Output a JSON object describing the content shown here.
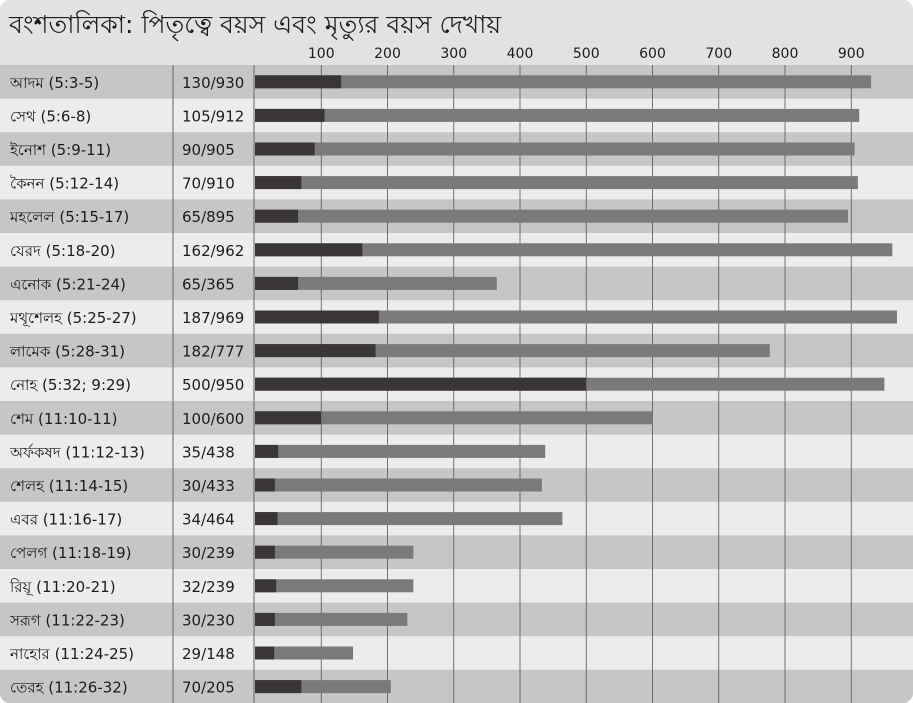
{
  "chart_data": {
    "type": "bar",
    "title": "বংশতালিকা: পিতৃত্বে বয়স এবং মৃত্যুর বয়স দেখায়",
    "x_ticks": [
      100,
      200,
      300,
      400,
      500,
      600,
      700,
      800,
      900
    ],
    "xlim": [
      0,
      970
    ],
    "grid": true,
    "rows": [
      {
        "name": "আদম (5:3-5)",
        "label": "130/930",
        "father_age": 130,
        "death_age": 930
      },
      {
        "name": "সেথ (5:6-8)",
        "label": "105/912",
        "father_age": 105,
        "death_age": 912
      },
      {
        "name": "ইনোশ (5:9-11)",
        "label": "90/905",
        "father_age": 90,
        "death_age": 905
      },
      {
        "name": "কৈনন (5:12-14)",
        "label": "70/910",
        "father_age": 70,
        "death_age": 910
      },
      {
        "name": "মহলেল (5:15-17)",
        "label": "65/895",
        "father_age": 65,
        "death_age": 895
      },
      {
        "name": "যেরদ (5:18-20)",
        "label": "162/962",
        "father_age": 162,
        "death_age": 962
      },
      {
        "name": "এনোক (5:21-24)",
        "label": "65/365",
        "father_age": 65,
        "death_age": 365
      },
      {
        "name": "মথূশেলহ (5:25-27)",
        "label": "187/969",
        "father_age": 187,
        "death_age": 969
      },
      {
        "name": "লামেক (5:28-31)",
        "label": "182/777",
        "father_age": 182,
        "death_age": 777
      },
      {
        "name": "নোহ (5:32; 9:29)",
        "label": "500/950",
        "father_age": 500,
        "death_age": 950
      },
      {
        "name": "শেম (11:10-11)",
        "label": "100/600",
        "father_age": 100,
        "death_age": 600
      },
      {
        "name": "অর্ফকষদ (11:12-13)",
        "label": "35/438",
        "father_age": 35,
        "death_age": 438
      },
      {
        "name": "শেলহ (11:14-15)",
        "label": "30/433",
        "father_age": 30,
        "death_age": 433
      },
      {
        "name": "এবর (11:16-17)",
        "label": "34/464",
        "father_age": 34,
        "death_age": 464
      },
      {
        "name": "পেলগ (11:18-19)",
        "label": "30/239",
        "father_age": 30,
        "death_age": 239
      },
      {
        "name": "রিয়ূ (11:20-21)",
        "label": "32/239",
        "father_age": 32,
        "death_age": 239
      },
      {
        "name": "সরূগ (11:22-23)",
        "label": "30/230",
        "father_age": 30,
        "death_age": 230
      },
      {
        "name": "নাহোর (11:24-25)",
        "label": "29/148",
        "father_age": 29,
        "death_age": 148
      },
      {
        "name": "তেরহ (11:26-32)",
        "label": "70/205",
        "father_age": 70,
        "death_age": 205
      }
    ],
    "colors": {
      "father_bar": "#3a3536",
      "lifespan_bar": "#7a7a7a",
      "row_dark": "#c6c6c6",
      "row_light": "#ececec",
      "header_bg": "#e2e2e2",
      "grid": "#555555",
      "separator": "#666666"
    }
  }
}
